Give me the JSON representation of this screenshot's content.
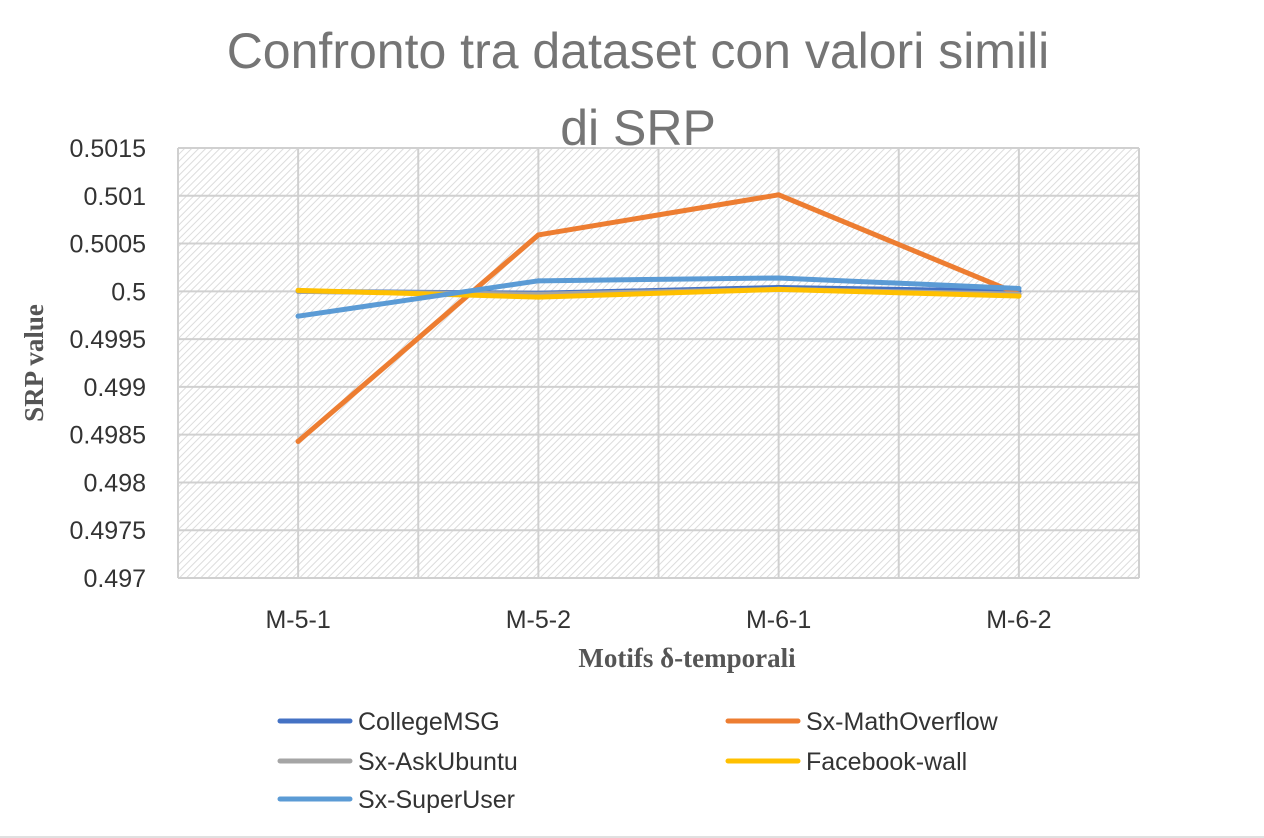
{
  "chart_data": {
    "type": "line",
    "title_line1": "Confronto tra dataset con valori simili",
    "title_line2": "di SRP",
    "xlabel": "Motifs δ-temporali",
    "ylabel": "SRP value",
    "categories": [
      "M-5-1",
      "M-5-2",
      "M-6-1",
      "M-6-2"
    ],
    "ylim": [
      0.497,
      0.5015
    ],
    "yticks": [
      0.5015,
      0.501,
      0.5005,
      0.5,
      0.4995,
      0.499,
      0.4985,
      0.498,
      0.4975,
      0.497
    ],
    "ytick_labels": [
      "0.5015",
      "0.501",
      "0.5005",
      "0.5",
      "0.4995",
      "0.499",
      "0.4985",
      "0.498",
      "0.4975",
      "0.497"
    ],
    "grid": true,
    "legend_position": "bottom",
    "series": [
      {
        "name": "CollegeMSG",
        "color": "#4472c4",
        "values": [
          0.5,
          0.49998,
          0.50004,
          0.5
        ]
      },
      {
        "name": "Sx-MathOverflow",
        "color": "#ed7d31",
        "values": [
          0.49843,
          0.50059,
          0.50101,
          0.49997
        ]
      },
      {
        "name": "Sx-AskUbuntu",
        "color": "#a5a5a5",
        "values": [
          0.5,
          0.49997,
          0.50002,
          0.49997
        ]
      },
      {
        "name": "Facebook-wall",
        "color": "#ffc000",
        "values": [
          0.50001,
          0.49994,
          0.50002,
          0.49995
        ]
      },
      {
        "name": "Sx-SuperUser",
        "color": "#5b9bd5",
        "values": [
          0.49974,
          0.50011,
          0.50014,
          0.50003
        ]
      }
    ]
  }
}
